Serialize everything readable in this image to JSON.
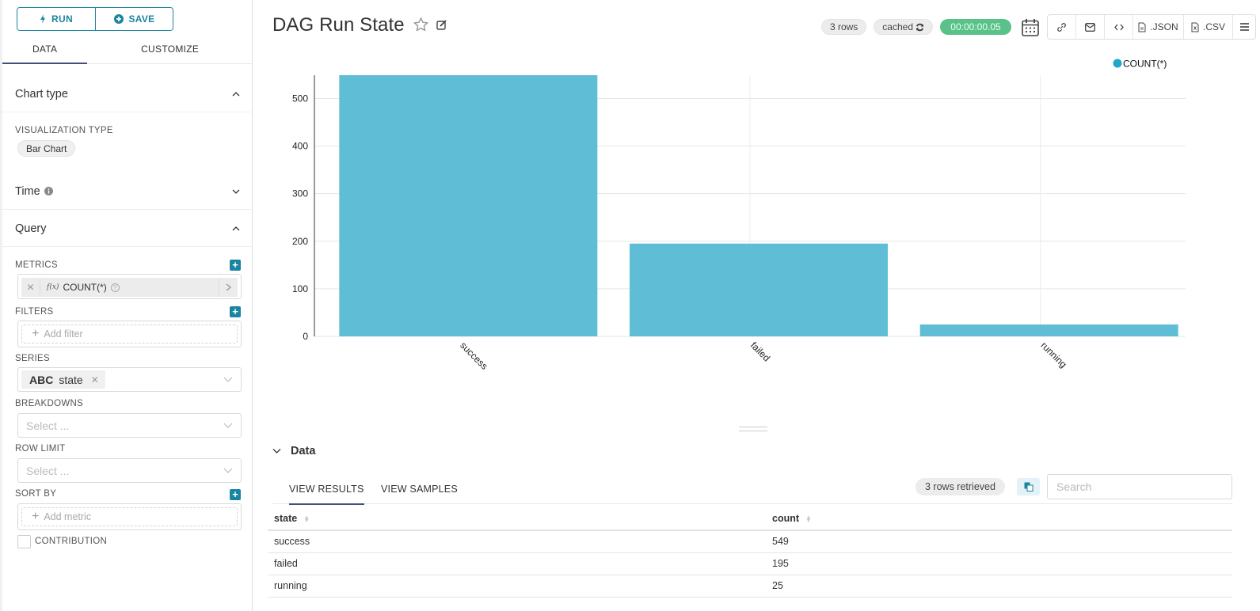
{
  "sidebar": {
    "run_label": "RUN",
    "save_label": "SAVE",
    "tabs": [
      {
        "label": "DATA"
      },
      {
        "label": "CUSTOMIZE"
      }
    ],
    "sections": {
      "chart_type": "Chart type",
      "time": "Time",
      "query": "Query"
    },
    "visualization_type_label": "VISUALIZATION TYPE",
    "visualization_type_value": "Bar Chart",
    "metrics_label": "METRICS",
    "metric": {
      "fx": "f(x)",
      "name": "COUNT(*)"
    },
    "filters_label": "FILTERS",
    "filters_placeholder": "Add filter",
    "series_label": "SERIES",
    "series_value": {
      "type": "ABC",
      "name": "state"
    },
    "breakdowns_label": "BREAKDOWNS",
    "breakdowns_placeholder": "Select ...",
    "row_limit_label": "ROW LIMIT",
    "row_limit_placeholder": "Select ...",
    "sort_by_label": "SORT BY",
    "sort_by_placeholder": "Add metric",
    "contribution_label": "CONTRIBUTION"
  },
  "header": {
    "title": "DAG Run State",
    "rows_badge": "3 rows",
    "cached_badge": "cached",
    "duration_badge": "00:00:00.05",
    "json_label": ".JSON",
    "csv_label": ".CSV"
  },
  "colors": {
    "accent": "#1a85a0",
    "bar": "#5abcd4",
    "legend_dot": "#1fa8c9",
    "success_badge": "#5ac189",
    "tab_underline": "#444e7c"
  },
  "chart_data": {
    "type": "bar",
    "title": "DAG Run State",
    "categories": [
      "success",
      "failed",
      "running"
    ],
    "series": [
      {
        "name": "COUNT(*)",
        "values": [
          549,
          195,
          25
        ]
      }
    ],
    "xlabel": "",
    "ylabel": "",
    "ylim": [
      0,
      549
    ],
    "yticks": [
      0,
      100,
      200,
      300,
      400,
      500
    ],
    "grid": true,
    "legend_position": "top-right",
    "x_tick_rotation": 45
  },
  "data_panel": {
    "title": "Data",
    "tabs": [
      {
        "label": "VIEW RESULTS"
      },
      {
        "label": "VIEW SAMPLES"
      }
    ],
    "rows_retrieved": "3 rows retrieved",
    "search_placeholder": "Search",
    "columns": [
      "state",
      "count"
    ],
    "rows": [
      [
        "success",
        "549"
      ],
      [
        "failed",
        "195"
      ],
      [
        "running",
        "25"
      ]
    ]
  }
}
